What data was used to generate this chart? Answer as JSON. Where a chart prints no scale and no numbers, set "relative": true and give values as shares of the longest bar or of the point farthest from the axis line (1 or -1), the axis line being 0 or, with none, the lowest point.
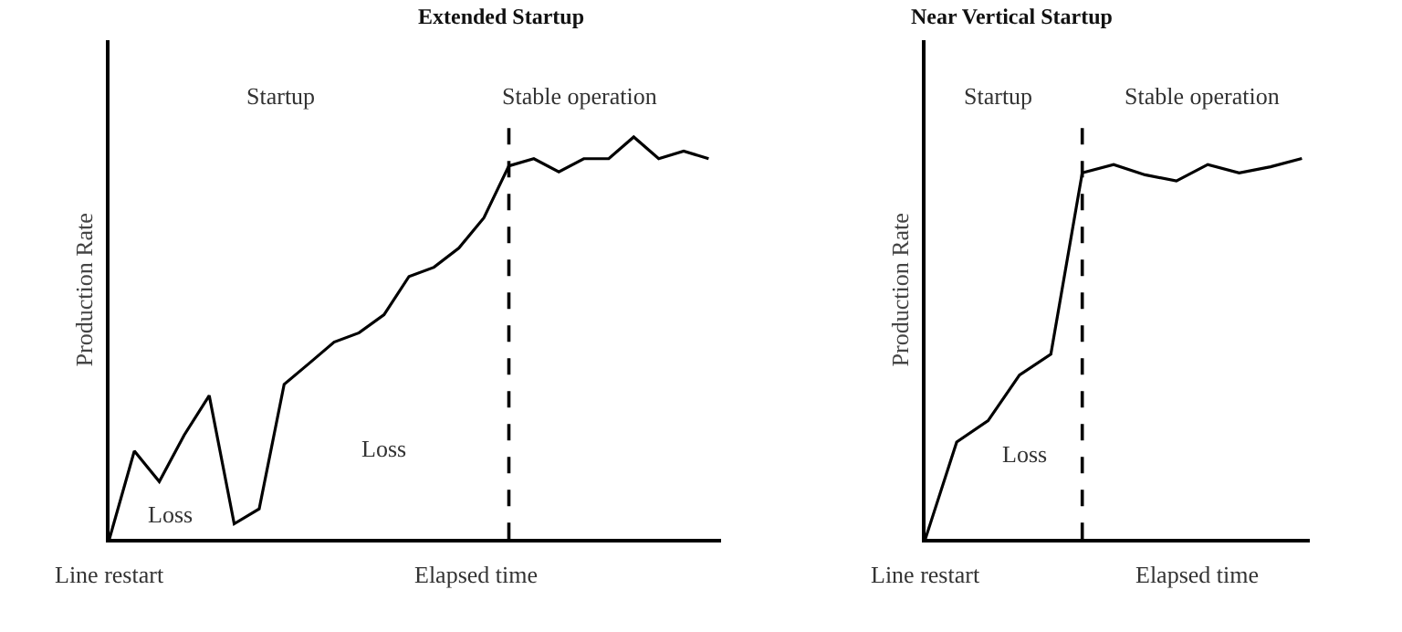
{
  "chart_data": [
    {
      "type": "line",
      "title": "Extended Startup",
      "ylabel": "Production Rate",
      "xlabel": "Elapsed time",
      "relative": true,
      "color": "#000000",
      "line_style": "solid",
      "categories": [
        null,
        null,
        null,
        null,
        null,
        null,
        null,
        null,
        null,
        null,
        null,
        null,
        null,
        null,
        null,
        null,
        null,
        null,
        null,
        null,
        null,
        null,
        null,
        null,
        null
      ],
      "values": [
        0,
        0.219,
        0.143,
        0.259,
        0.357,
        0.038,
        0.075,
        0.385,
        0.437,
        0.49,
        0.513,
        0.558,
        0.653,
        0.676,
        0.724,
        0.799,
        0.928,
        0.946,
        0.913,
        0.946,
        0.946,
        1,
        0.946,
        0.965,
        0.946
      ],
      "ref_lines": [
        {
          "axis": "x",
          "line_style": "dashed"
        }
      ],
      "annotations": [
        "Startup",
        "Stable operation",
        "Loss",
        "Loss",
        "Line restart"
      ]
    },
    {
      "type": "line",
      "title": "Near Vertical Startup",
      "ylabel": "Production Rate",
      "xlabel": "Elapsed time",
      "relative": true,
      "color": "#000000",
      "line_style": "solid",
      "categories": [
        null,
        null,
        null,
        null,
        null,
        null,
        null,
        null,
        null,
        null,
        null,
        null,
        null
      ],
      "values": [
        0,
        0.255,
        0.311,
        0.431,
        0.486,
        0.962,
        0.984,
        0.957,
        0.941,
        0.984,
        0.962,
        0.978,
        1
      ],
      "ref_lines": [
        {
          "axis": "x",
          "line_style": "dashed"
        }
      ],
      "annotations": [
        "Startup",
        "Stable operation",
        "Loss",
        "Line restart"
      ]
    }
  ]
}
